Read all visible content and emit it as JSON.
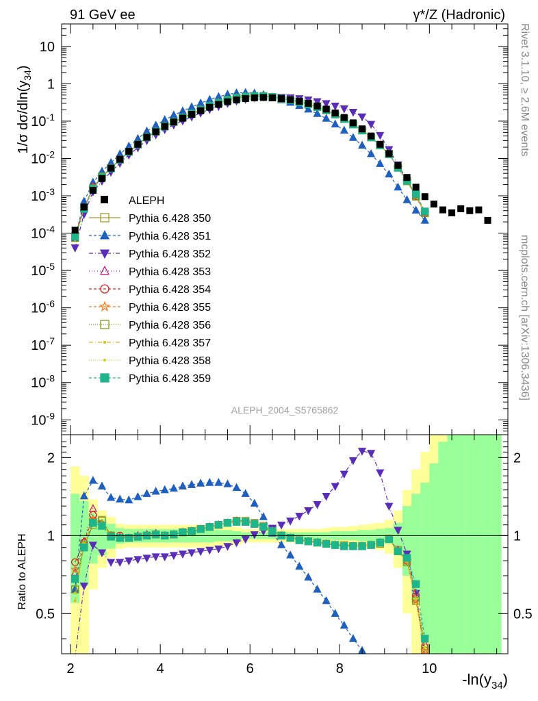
{
  "header": {
    "left": "91 GeV ee",
    "right": "γ*/Z (Hadronic)"
  },
  "side_labels": {
    "rivet": "Rivet 3.1.10, ≥ 2.6M events",
    "mcplots": "mcplots.cern.ch [arXiv:1306.3436]"
  },
  "watermark": "ALEPH_2004_S5765862",
  "chart_data": [
    {
      "panel": "main",
      "type": "scatter",
      "ylabel": "1/σ  dσ/dln(y34)",
      "ylabel_parts": {
        "pre": "1/σ  dσ/dln(y",
        "sub": "34",
        "post": ")"
      },
      "yscale": "log",
      "ylim": [
        4e-10,
        40
      ],
      "xlim": [
        1.8,
        11.75
      ],
      "ytick_labels": [
        "10",
        "1",
        "10^-1",
        "10^-2",
        "10^-3",
        "10^-4",
        "10^-5",
        "10^-6",
        "10^-7",
        "10^-8",
        "10^-9"
      ],
      "legend_position": "middle-left",
      "data": {
        "name": "ALEPH",
        "color": "#000000",
        "x": [
          2.1,
          2.3,
          2.5,
          2.7,
          2.9,
          3.1,
          3.3,
          3.5,
          3.7,
          3.9,
          4.1,
          4.3,
          4.5,
          4.7,
          4.9,
          5.1,
          5.3,
          5.5,
          5.7,
          5.9,
          6.1,
          6.3,
          6.5,
          6.7,
          6.9,
          7.1,
          7.3,
          7.5,
          7.7,
          7.9,
          8.1,
          8.3,
          8.5,
          8.7,
          8.9,
          9.1,
          9.3,
          9.5,
          9.7,
          9.9,
          10.1,
          10.3,
          10.5,
          10.7,
          10.9,
          11.1,
          11.3
        ],
        "y": [
          0.00012,
          0.0005,
          0.0014,
          0.0029,
          0.0055,
          0.0095,
          0.0155,
          0.024,
          0.037,
          0.052,
          0.072,
          0.095,
          0.12,
          0.152,
          0.19,
          0.235,
          0.28,
          0.33,
          0.37,
          0.4,
          0.42,
          0.43,
          0.42,
          0.4,
          0.375,
          0.34,
          0.3,
          0.255,
          0.21,
          0.165,
          0.125,
          0.09,
          0.062,
          0.04,
          0.024,
          0.0135,
          0.0065,
          0.0031,
          0.0017,
          0.00095,
          0.0006,
          0.00042,
          0.00035,
          0.00045,
          0.0004,
          0.00042,
          0.00022
        ]
      },
      "series": [
        {
          "name": "Pythia 6.428 350",
          "color": "#a89a2a",
          "marker": "square-open",
          "dash": "",
          "ratio": [
            0.62,
            0.91,
            1.1,
            1.15,
            1.0,
            0.98,
            0.98,
            0.99,
            1.0,
            1.01,
            1.0,
            1.01,
            1.03,
            1.04,
            1.06,
            1.08,
            1.1,
            1.12,
            1.14,
            1.14,
            1.12,
            1.09,
            1.05,
            1.0,
            0.98,
            0.97,
            0.95,
            0.94,
            0.93,
            0.92,
            0.92,
            0.91,
            0.91,
            0.92,
            0.94,
            0.97,
            0.88,
            0.8,
            0.58,
            0.37
          ]
        },
        {
          "name": "Pythia 6.428 351",
          "color": "#1f5fbf",
          "marker": "triangle-up",
          "dash": "4,3",
          "ratio": [
            0.62,
            1.42,
            1.63,
            1.55,
            1.4,
            1.38,
            1.37,
            1.41,
            1.45,
            1.48,
            1.5,
            1.52,
            1.55,
            1.57,
            1.59,
            1.6,
            1.6,
            1.58,
            1.53,
            1.45,
            1.33,
            1.18,
            1.02,
            0.92,
            0.84,
            0.76,
            0.69,
            0.62,
            0.56,
            0.5,
            0.45,
            0.4,
            0.36,
            0.33,
            0.3,
            0.28,
            0.26,
            0.25,
            0.24,
            0.23
          ]
        },
        {
          "name": "Pythia 6.428 352",
          "color": "#5a2db8",
          "marker": "triangle-down",
          "dash": "6,3,1,3",
          "ratio": [
            0.34,
            0.64,
            0.92,
            0.86,
            0.79,
            0.79,
            0.8,
            0.81,
            0.82,
            0.83,
            0.83,
            0.84,
            0.85,
            0.86,
            0.87,
            0.88,
            0.89,
            0.91,
            0.94,
            0.97,
            1.01,
            1.04,
            1.07,
            1.1,
            1.14,
            1.19,
            1.25,
            1.32,
            1.42,
            1.55,
            1.73,
            1.95,
            2.12,
            2.08,
            1.75,
            1.3,
            1.05,
            0.85,
            0.6,
            0.34
          ]
        },
        {
          "name": "Pythia 6.428 353",
          "color": "#c0207f",
          "marker": "triangle-up-open",
          "dash": "1,3",
          "ratio": [
            0.72,
            0.95,
            1.27,
            1.1,
            1.0,
            0.99,
            0.98,
            1.0,
            1.01,
            1.02,
            1.0,
            1.01,
            1.03,
            1.04,
            1.06,
            1.08,
            1.1,
            1.12,
            1.14,
            1.13,
            1.11,
            1.08,
            1.04,
            1.0,
            0.98,
            0.96,
            0.95,
            0.94,
            0.93,
            0.92,
            0.91,
            0.91,
            0.91,
            0.92,
            0.94,
            0.97,
            0.88,
            0.82,
            0.6,
            0.38
          ]
        },
        {
          "name": "Pythia 6.428 354",
          "color": "#e0201f",
          "marker": "circle-open",
          "dash": "4,3",
          "ratio": [
            0.79,
            0.94,
            1.2,
            1.1,
            1.0,
            1.0,
            0.98,
            0.99,
            1.0,
            1.01,
            1.0,
            1.01,
            1.03,
            1.04,
            1.06,
            1.08,
            1.1,
            1.12,
            1.13,
            1.13,
            1.11,
            1.08,
            1.04,
            1.0,
            0.98,
            0.96,
            0.95,
            0.94,
            0.93,
            0.92,
            0.91,
            0.91,
            0.91,
            0.92,
            0.94,
            0.97,
            0.87,
            0.8,
            0.57,
            0.36
          ]
        },
        {
          "name": "Pythia 6.428 355",
          "color": "#f07a1a",
          "marker": "star-open",
          "dash": "4,3",
          "ratio": [
            0.74,
            0.9,
            1.15,
            1.11,
            0.99,
            0.98,
            0.98,
            0.99,
            1.0,
            1.01,
            1.0,
            1.01,
            1.03,
            1.04,
            1.06,
            1.08,
            1.1,
            1.12,
            1.13,
            1.13,
            1.11,
            1.08,
            1.04,
            1.0,
            0.98,
            0.96,
            0.95,
            0.94,
            0.93,
            0.92,
            0.91,
            0.91,
            0.91,
            0.92,
            0.94,
            0.97,
            0.87,
            0.8,
            0.56,
            0.36
          ]
        },
        {
          "name": "Pythia 6.428 356",
          "color": "#7f9a1a",
          "marker": "square-open",
          "dash": "1,2",
          "ratio": [
            0.62,
            0.92,
            1.12,
            1.14,
            1.0,
            0.98,
            0.98,
            0.99,
            1.0,
            1.01,
            1.0,
            1.01,
            1.03,
            1.04,
            1.06,
            1.08,
            1.1,
            1.12,
            1.14,
            1.13,
            1.11,
            1.08,
            1.04,
            1.0,
            0.98,
            0.96,
            0.95,
            0.94,
            0.93,
            0.92,
            0.91,
            0.91,
            0.91,
            0.92,
            0.93,
            0.97,
            0.87,
            0.79,
            0.56,
            0.36
          ]
        },
        {
          "name": "Pythia 6.428 357",
          "color": "#e0b81a",
          "marker": "dot",
          "dash": "6,3,1,3",
          "ratio": [
            0.56,
            0.92,
            1.12,
            1.12,
            0.99,
            0.98,
            0.98,
            0.99,
            1.0,
            1.01,
            1.0,
            1.01,
            1.03,
            1.04,
            1.06,
            1.08,
            1.1,
            1.12,
            1.13,
            1.13,
            1.11,
            1.08,
            1.04,
            1.0,
            0.98,
            0.96,
            0.95,
            0.94,
            0.93,
            0.92,
            0.91,
            0.91,
            0.91,
            0.92,
            0.94,
            0.97,
            0.87,
            0.8,
            0.57,
            0.37
          ]
        },
        {
          "name": "Pythia 6.428 358",
          "color": "#c8d21a",
          "marker": "dot",
          "dash": "1,2",
          "ratio": [
            0.6,
            0.93,
            1.12,
            1.12,
            0.99,
            0.98,
            0.98,
            0.99,
            1.0,
            1.01,
            1.0,
            1.01,
            1.03,
            1.04,
            1.06,
            1.08,
            1.1,
            1.12,
            1.13,
            1.13,
            1.11,
            1.08,
            1.04,
            1.0,
            0.98,
            0.96,
            0.95,
            0.94,
            0.93,
            0.92,
            0.91,
            0.91,
            0.91,
            0.92,
            0.94,
            0.97,
            0.87,
            0.8,
            0.57,
            0.37
          ]
        },
        {
          "name": "Pythia 6.428 359",
          "color": "#1fb58a",
          "marker": "square",
          "dash": "4,3",
          "ratio": [
            0.68,
            0.9,
            1.12,
            1.09,
            0.99,
            0.98,
            0.98,
            0.99,
            1.0,
            1.01,
            1.0,
            1.01,
            1.03,
            1.04,
            1.06,
            1.08,
            1.1,
            1.12,
            1.13,
            1.13,
            1.11,
            1.08,
            1.04,
            1.0,
            0.98,
            0.96,
            0.95,
            0.94,
            0.93,
            0.92,
            0.91,
            0.91,
            0.91,
            0.92,
            0.94,
            0.97,
            0.87,
            0.82,
            0.65,
            0.4
          ]
        }
      ]
    },
    {
      "panel": "ratio",
      "type": "scatter",
      "ylabel": "Ratio to ALEPH",
      "ylim": [
        0.35,
        2.45
      ],
      "xlim": [
        1.8,
        11.75
      ],
      "xlabel_parts": {
        "pre": "-ln(y",
        "sub": "34",
        "post": ")"
      },
      "xtick_labels": [
        "2",
        "4",
        "6",
        "8",
        "10"
      ],
      "ytick_labels": [
        "0.5",
        "1",
        "2"
      ],
      "band_colors": {
        "outer": "#ffff99",
        "inner": "#99ff99"
      },
      "band_x": [
        2.0,
        2.2,
        2.4,
        2.6,
        2.8,
        3.0,
        3.2,
        3.4,
        3.6,
        3.8,
        4.0,
        4.2,
        4.4,
        4.6,
        4.8,
        5.0,
        5.2,
        5.4,
        5.6,
        5.8,
        6.0,
        6.2,
        6.4,
        6.6,
        6.8,
        7.0,
        7.2,
        7.4,
        7.6,
        7.8,
        8.0,
        8.2,
        8.4,
        8.6,
        8.8,
        9.0,
        9.2,
        9.4,
        9.6,
        9.8,
        10.0,
        10.2,
        10.4,
        10.6,
        10.8,
        11.0,
        11.2,
        11.4
      ],
      "band_inner": [
        0.45,
        0.36,
        0.22,
        0.16,
        0.11,
        0.07,
        0.06,
        0.06,
        0.06,
        0.06,
        0.06,
        0.06,
        0.06,
        0.06,
        0.06,
        0.06,
        0.05,
        0.05,
        0.04,
        0.03,
        0.03,
        0.03,
        0.03,
        0.03,
        0.03,
        0.03,
        0.03,
        0.03,
        0.03,
        0.04,
        0.04,
        0.04,
        0.05,
        0.05,
        0.06,
        0.07,
        0.12,
        0.3,
        0.45,
        0.6,
        0.9,
        1.3,
        1.5,
        1.55,
        1.7,
        1.85,
        2.0,
        2.2
      ],
      "band_outer": [
        0.85,
        0.7,
        0.38,
        0.25,
        0.18,
        0.11,
        0.1,
        0.1,
        0.1,
        0.1,
        0.1,
        0.1,
        0.1,
        0.1,
        0.1,
        0.1,
        0.09,
        0.09,
        0.08,
        0.06,
        0.06,
        0.06,
        0.06,
        0.06,
        0.06,
        0.06,
        0.06,
        0.06,
        0.07,
        0.08,
        0.08,
        0.09,
        0.1,
        0.11,
        0.12,
        0.15,
        0.25,
        0.5,
        0.8,
        1.1,
        1.5,
        1.7,
        1.8,
        1.9,
        2.0,
        2.1,
        2.2,
        2.4
      ]
    }
  ]
}
